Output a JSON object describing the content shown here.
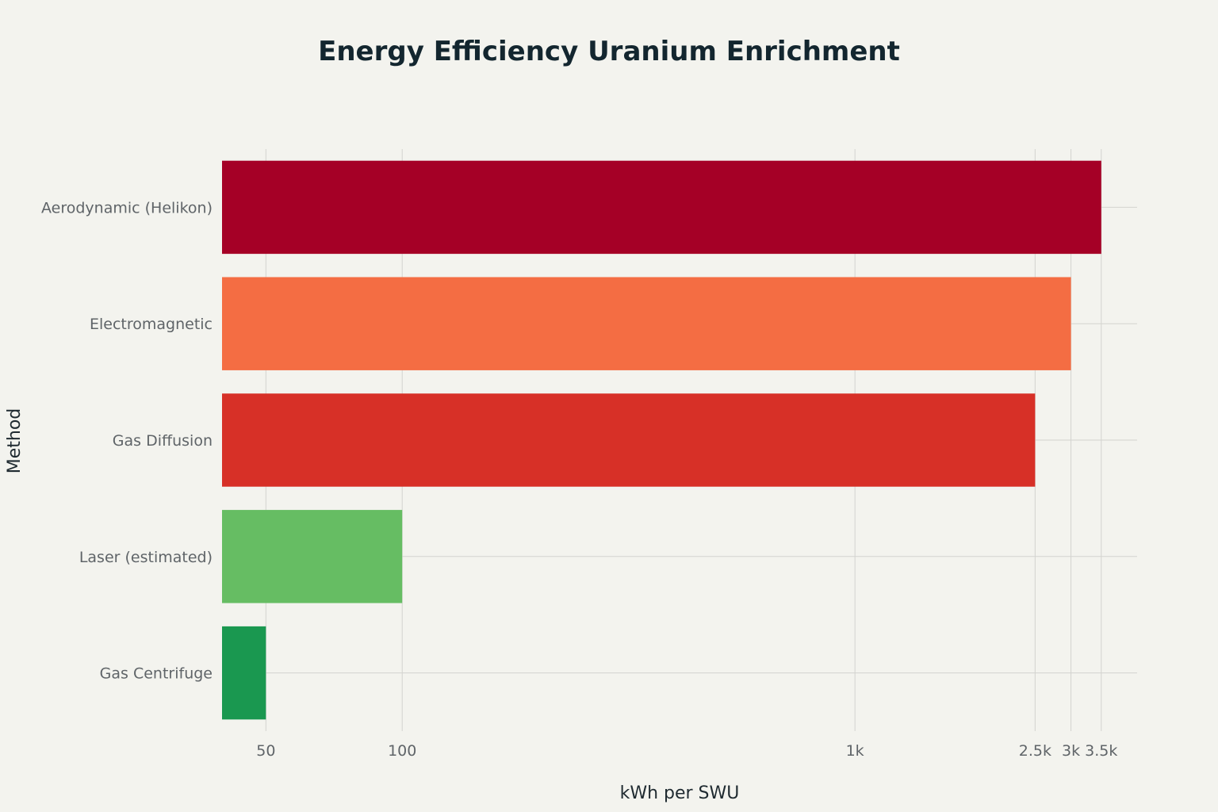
{
  "chart_data": {
    "type": "bar",
    "orientation": "horizontal",
    "title": "Energy Efficiency Uranium Enrichment",
    "xlabel": "kWh per SWU",
    "ylabel": "Method",
    "x_scale": "log",
    "xlim": [
      40,
      4200
    ],
    "x_ticks": [
      {
        "value": 50,
        "label": "50"
      },
      {
        "value": 100,
        "label": "100"
      },
      {
        "value": 1000,
        "label": "1k"
      },
      {
        "value": 2500,
        "label": "2.5k"
      },
      {
        "value": 3000,
        "label": "3k"
      },
      {
        "value": 3500,
        "label": "3.5k"
      }
    ],
    "categories": [
      "Aerodynamic (Helikon)",
      "Electromagnetic",
      "Gas Diffusion",
      "Laser (estimated)",
      "Gas Centrifuge"
    ],
    "values": [
      3500,
      3000,
      2500,
      100,
      50
    ],
    "colors": [
      "#a50026",
      "#f46d43",
      "#d73027",
      "#66bd63",
      "#1a9850"
    ],
    "grid": true,
    "legend": "none"
  }
}
